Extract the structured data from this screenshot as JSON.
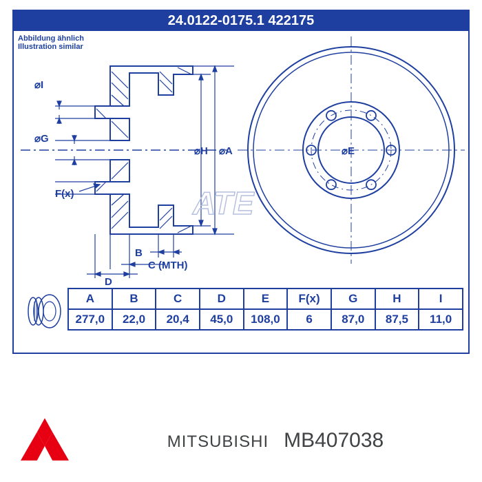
{
  "header": {
    "part_numbers": "24.0122-0175.1    422175",
    "note_line1": "Abbildung ähnlich",
    "note_line2": "Illustration similar"
  },
  "watermark": "ATE",
  "diagram": {
    "stroke_color": "#1e3fa0",
    "bg_color": "#ffffff",
    "labels": {
      "diam_I": "⌀I",
      "diam_G": "⌀G",
      "diam_H": "⌀H",
      "diam_A": "⌀A",
      "diam_E": "⌀E",
      "F": "F(x)",
      "B": "B",
      "C": "C (MTH)",
      "D": "D"
    }
  },
  "table": {
    "headers": [
      "A",
      "B",
      "C",
      "D",
      "E",
      "F(x)",
      "G",
      "H",
      "I"
    ],
    "values": [
      "277,0",
      "22,0",
      "20,4",
      "45,0",
      "108,0",
      "6",
      "87,0",
      "87,5",
      "11,0"
    ]
  },
  "brand": {
    "name": "MITSUBISHI",
    "part": "MB407038",
    "logo_color": "#e60012"
  }
}
